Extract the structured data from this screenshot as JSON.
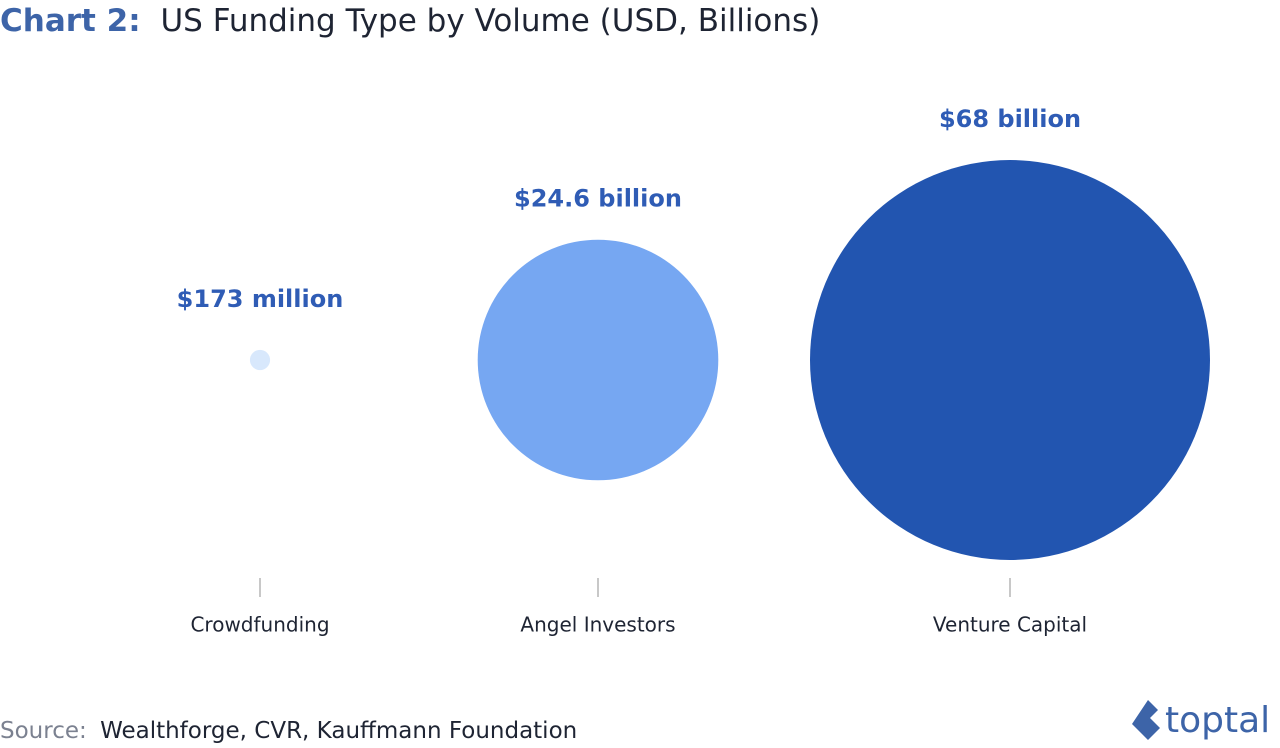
{
  "chart_data": {
    "type": "bubble",
    "chart_label": "Chart 2:",
    "title": "US Funding Type by Volume (USD, Billions)",
    "categories": [
      "Crowdfunding",
      "Angel Investors",
      "Venture Capital"
    ],
    "values": [
      0.173,
      24.6,
      68
    ],
    "value_labels": [
      "$173 million",
      "$24.6 billion",
      "$68 billion"
    ],
    "colors": [
      "#d8e8fc",
      "#76a7f2",
      "#2255b0"
    ],
    "source_label": "Source:",
    "source": "Wealthforge, CVR, Kauffmann Foundation",
    "logo": "toptal"
  }
}
